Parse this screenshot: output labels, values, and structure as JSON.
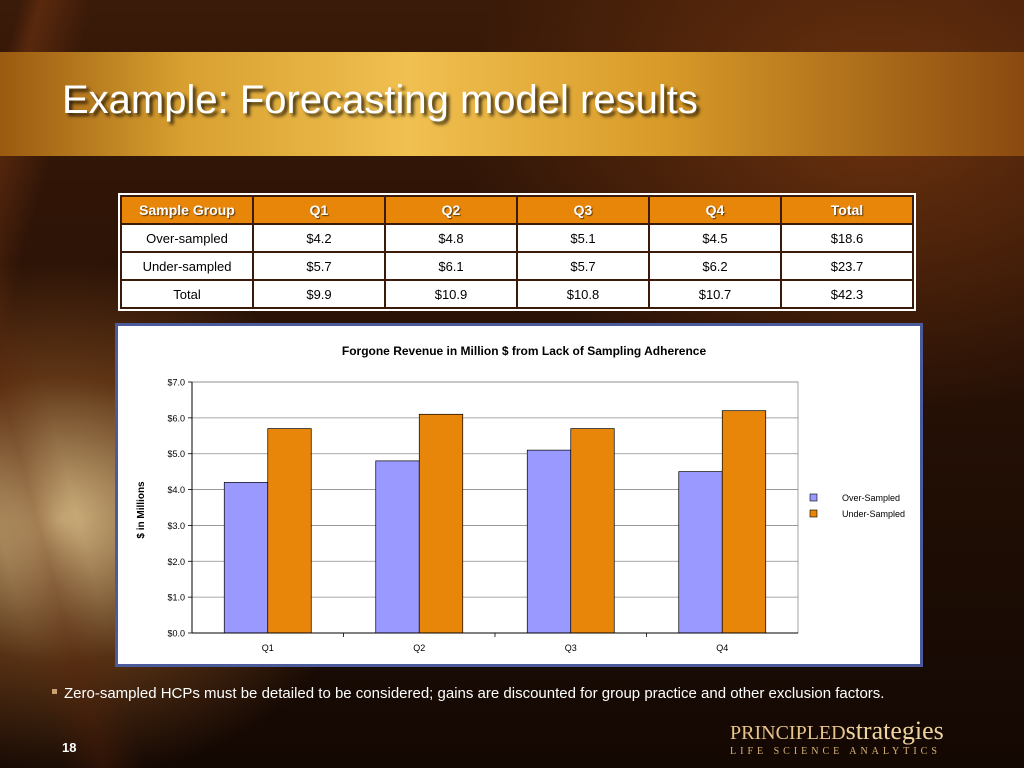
{
  "slide": {
    "title": "Example: Forecasting model results",
    "caption": "Zero-sampled HCPs must be detailed to be considered; gains are discounted for group practice and other exclusion factors.",
    "page_number": "18",
    "logo": {
      "word1": "PRINCIPLED",
      "word2": "strategies",
      "tagline": "LIFE SCIENCE ANALYTICS"
    }
  },
  "table": {
    "headers": [
      "Sample Group",
      "Q1",
      "Q2",
      "Q3",
      "Q4",
      "Total"
    ],
    "rows": [
      [
        "Over-sampled",
        "$4.2",
        "$4.8",
        "$5.1",
        "$4.5",
        "$18.6"
      ],
      [
        "Under-sampled",
        "$5.7",
        "$6.1",
        "$5.7",
        "$6.2",
        "$23.7"
      ],
      [
        "Total",
        "$9.9",
        "$10.9",
        "$10.8",
        "$10.7",
        "$42.3"
      ]
    ]
  },
  "chart_data": {
    "type": "bar",
    "title": "Forgone Revenue in Million $ from Lack of Sampling Adherence",
    "xlabel": "",
    "ylabel": "$ in Millions",
    "categories": [
      "Q1",
      "Q2",
      "Q3",
      "Q4"
    ],
    "series": [
      {
        "name": "Over-Sampled",
        "values": [
          4.2,
          4.8,
          5.1,
          4.5
        ],
        "color": "#9999ff"
      },
      {
        "name": "Under-Sampled",
        "values": [
          5.7,
          6.1,
          5.7,
          6.2
        ],
        "color": "#e8860a"
      }
    ],
    "ylim": [
      0,
      7
    ],
    "yticks": [
      "$0.0",
      "$1.0",
      "$2.0",
      "$3.0",
      "$4.0",
      "$5.0",
      "$6.0",
      "$7.0"
    ],
    "grid": true,
    "legend_position": "right"
  }
}
